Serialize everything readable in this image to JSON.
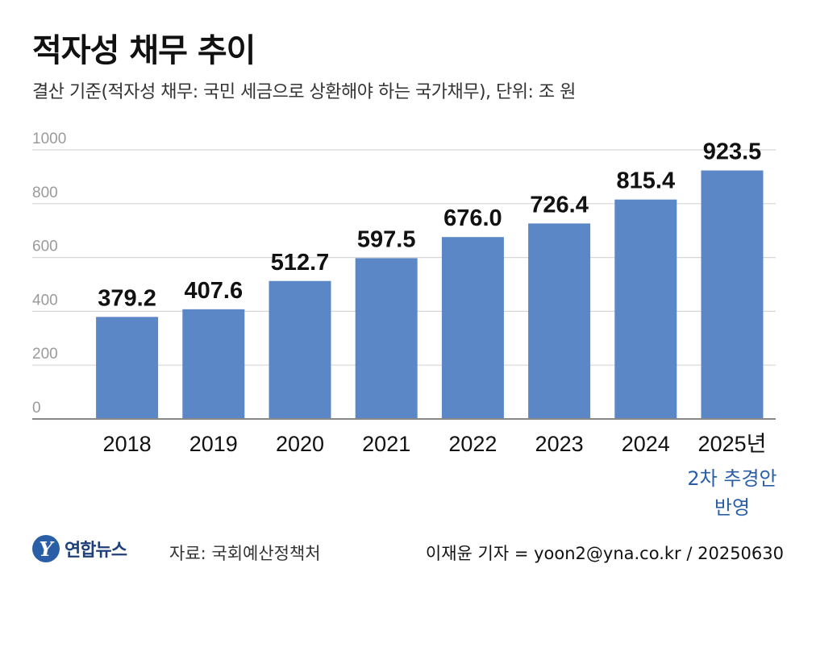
{
  "header": {
    "title": "적자성 채무 추이",
    "subtitle": "결산 기준(적자성 채무: 국민 세금으로 상환해야 하는 국가채무), 단위: 조 원"
  },
  "chart_data": {
    "type": "bar",
    "title": "적자성 채무 추이",
    "ylabel": "조 원",
    "xlabel": "",
    "ylim": [
      0,
      1000
    ],
    "yticks": [
      "0",
      "200",
      "400",
      "600",
      "800",
      "1000"
    ],
    "grid": true,
    "categories": [
      "2018",
      "2019",
      "2020",
      "2021",
      "2022",
      "2023",
      "2024",
      "2025년"
    ],
    "values": [
      379.2,
      407.6,
      512.7,
      597.5,
      676.0,
      726.4,
      815.4,
      923.5
    ],
    "value_labels": [
      "379.2",
      "407.6",
      "512.7",
      "597.5",
      "676.0",
      "726.4",
      "815.4",
      "923.5"
    ],
    "annotation": [
      "2차 추경안",
      "반영"
    ]
  },
  "colors": {
    "bar": "#5b87c6",
    "accent": "#2a5fa8",
    "grid": "#d6d6d6",
    "axis": "#888888"
  },
  "footer": {
    "logo_mark": "Y",
    "logo_text": "연합뉴스",
    "source": "자료: 국회예산정책처",
    "credit": "이재윤 기자 = yoon2@yna.co.kr / 20250630"
  }
}
